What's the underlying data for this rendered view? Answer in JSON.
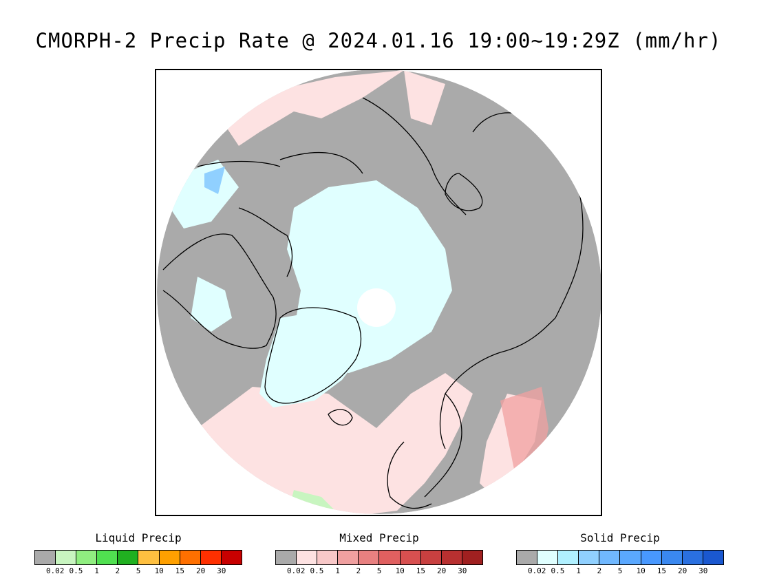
{
  "title": "CMORPH-2 Precip Rate @ 2024.01.16 19:00~19:29Z (mm/hr)",
  "colors": {
    "no_data": "#ffffff",
    "below_threshold": "#aaaaaa",
    "background": "#ffffff"
  },
  "legends": [
    {
      "title": "Liquid Precip",
      "ticks": [
        "0.02",
        "0.5",
        "1",
        "2",
        "5",
        "10",
        "15",
        "20",
        "30"
      ],
      "colors": [
        "#aaaaaa",
        "#c8f5c0",
        "#90ee80",
        "#50e050",
        "#20b020",
        "#ffc040",
        "#ffa000",
        "#ff7000",
        "#ff3000",
        "#c80000"
      ]
    },
    {
      "title": "Mixed Precip",
      "ticks": [
        "0.02",
        "0.5",
        "1",
        "2",
        "5",
        "10",
        "15",
        "20",
        "30"
      ],
      "colors": [
        "#aaaaaa",
        "#fde2e2",
        "#f8c8c8",
        "#f0a0a0",
        "#e88080",
        "#e06060",
        "#d85050",
        "#c84040",
        "#b83030",
        "#a02020"
      ]
    },
    {
      "title": "Solid Precip",
      "ticks": [
        "0.02",
        "0.5",
        "1",
        "2",
        "5",
        "10",
        "15",
        "20",
        "30"
      ],
      "colors": [
        "#aaaaaa",
        "#e0ffff",
        "#b0f0ff",
        "#90d0ff",
        "#70b8ff",
        "#5aa8ff",
        "#4898ff",
        "#3a88f0",
        "#2a70e0",
        "#1a58d0"
      ]
    }
  ]
}
